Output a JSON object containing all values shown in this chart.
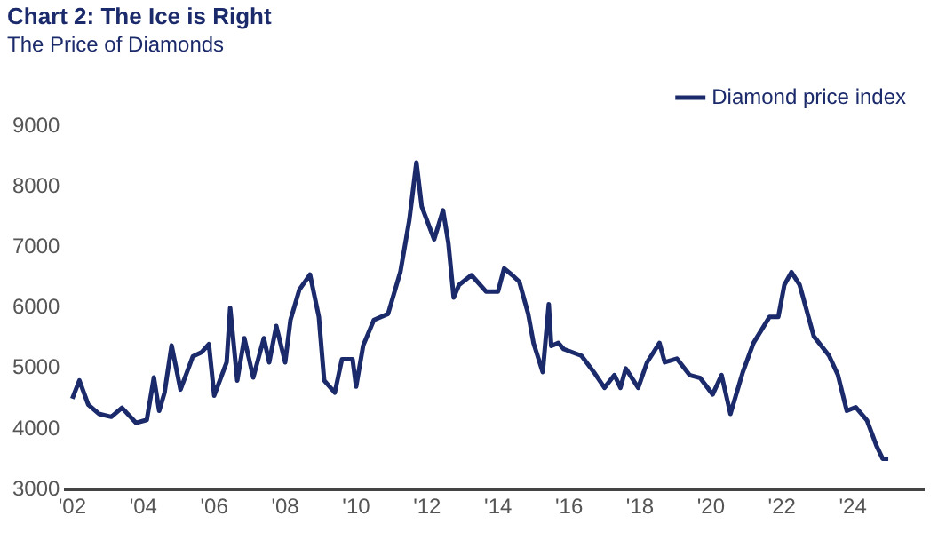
{
  "chart_data": {
    "type": "line",
    "title": "Chart 2: The Ice is Right",
    "subtitle": "The Price of Diamonds",
    "x": [
      2002.0,
      2002.2,
      2002.45,
      2002.75,
      2003.1,
      2003.4,
      2003.8,
      2004.1,
      2004.3,
      2004.45,
      2004.6,
      2004.8,
      2005.05,
      2005.4,
      2005.65,
      2005.85,
      2006.0,
      2006.35,
      2006.45,
      2006.65,
      2006.85,
      2007.1,
      2007.4,
      2007.55,
      2007.75,
      2008.0,
      2008.15,
      2008.4,
      2008.7,
      2008.95,
      2009.1,
      2009.4,
      2009.6,
      2009.9,
      2010.0,
      2010.2,
      2010.5,
      2010.9,
      2011.25,
      2011.5,
      2011.7,
      2011.85,
      2012.2,
      2012.45,
      2012.6,
      2012.75,
      2012.9,
      2013.25,
      2013.66,
      2014.0,
      2014.17,
      2014.4,
      2014.6,
      2014.85,
      2015.0,
      2015.26,
      2015.43,
      2015.5,
      2015.7,
      2015.85,
      2016.35,
      2016.7,
      2017.0,
      2017.28,
      2017.45,
      2017.6,
      2017.95,
      2018.2,
      2018.55,
      2018.7,
      2019.04,
      2019.4,
      2019.7,
      2020.05,
      2020.3,
      2020.55,
      2020.9,
      2021.2,
      2021.65,
      2021.9,
      2022.07,
      2022.27,
      2022.5,
      2022.9,
      2023.33,
      2023.58,
      2023.83,
      2024.08,
      2024.4,
      2024.67,
      2024.84,
      2025.0
    ],
    "series": [
      {
        "name": "Diamond price index",
        "color": "#1b2a6b",
        "values": [
          4500,
          4800,
          4400,
          4250,
          4200,
          4350,
          4100,
          4150,
          4850,
          4300,
          4600,
          5380,
          4650,
          5200,
          5270,
          5400,
          4550,
          5100,
          6000,
          4800,
          5500,
          4850,
          5500,
          5100,
          5700,
          5100,
          5800,
          6300,
          6550,
          5850,
          4800,
          4600,
          5150,
          5150,
          4700,
          5380,
          5800,
          5900,
          6600,
          7450,
          8400,
          7670,
          7130,
          7610,
          7070,
          6170,
          6380,
          6540,
          6270,
          6270,
          6650,
          6540,
          6430,
          5900,
          5420,
          4940,
          6060,
          5370,
          5420,
          5320,
          5210,
          4940,
          4680,
          4890,
          4680,
          5000,
          4680,
          5100,
          5420,
          5100,
          5160,
          4890,
          4840,
          4570,
          4890,
          4250,
          4940,
          5420,
          5850,
          5850,
          6380,
          6590,
          6380,
          5530,
          5210,
          4890,
          4300,
          4360,
          4140,
          3720,
          3510,
          3510
        ]
      }
    ],
    "xlim": [
      2001.8,
      2026
    ],
    "xticks": [
      {
        "value": 2002,
        "label": "'02"
      },
      {
        "value": 2004,
        "label": "'04"
      },
      {
        "value": 2006,
        "label": "'06"
      },
      {
        "value": 2008,
        "label": "'08"
      },
      {
        "value": 2010,
        "label": "'10"
      },
      {
        "value": 2012,
        "label": "'12"
      },
      {
        "value": 2014,
        "label": "'14"
      },
      {
        "value": 2016,
        "label": "'16"
      },
      {
        "value": 2018,
        "label": "'18"
      },
      {
        "value": 2020,
        "label": "'20"
      },
      {
        "value": 2022,
        "label": "'22"
      },
      {
        "value": 2024,
        "label": "'24"
      }
    ],
    "ylim": [
      3000,
      9000
    ],
    "yticks": [
      3000,
      4000,
      5000,
      6000,
      7000,
      8000,
      9000
    ],
    "grid": false,
    "legend": "top right",
    "marker": "none",
    "line_style": "solid"
  }
}
